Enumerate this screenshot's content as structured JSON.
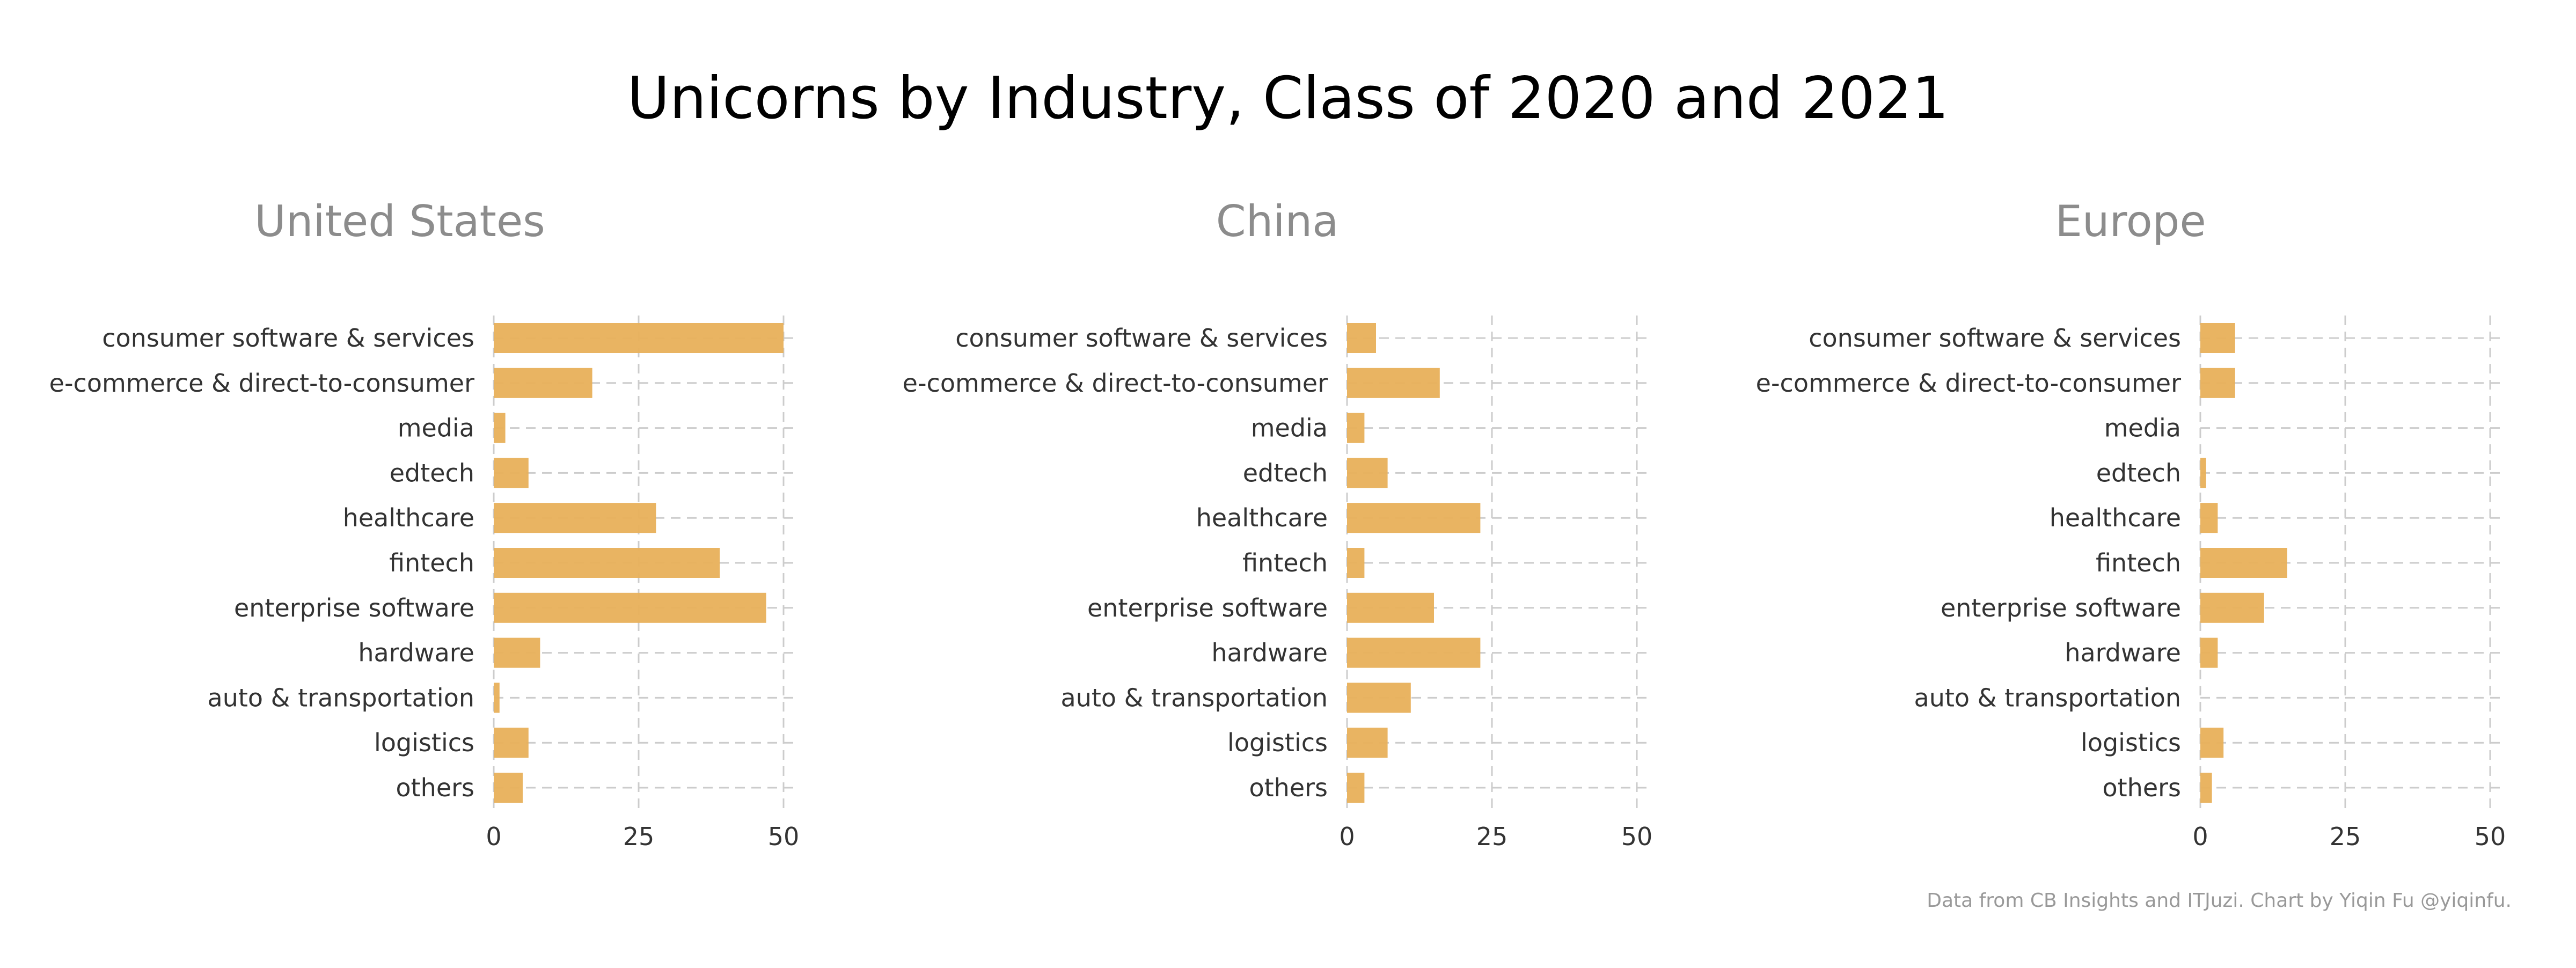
{
  "figure": {
    "title": "Unicorns by Industry, Class of 2020 and 2021",
    "caption": "Data from CB Insights and ITJuzi. Chart by Yiqin Fu @yiqinfu.",
    "bar_color": "#E8B05A",
    "grid_color": "#CCCCCC",
    "title_color": "#000000",
    "panel_title_color": "#8C8C8C",
    "label_color": "#333333",
    "caption_color": "#999999"
  },
  "chart_data": [
    {
      "type": "bar",
      "orientation": "horizontal",
      "title": "United States",
      "categories": [
        "consumer software & services",
        "e-commerce & direct-to-consumer",
        "media",
        "edtech",
        "healthcare",
        "fintech",
        "enterprise software",
        "hardware",
        "auto & transportation",
        "logistics",
        "others"
      ],
      "values": [
        50,
        17,
        2,
        6,
        28,
        39,
        47,
        8,
        1,
        6,
        5
      ],
      "xlim": [
        0,
        50
      ],
      "xticks": [
        0,
        25,
        50
      ],
      "grid": true
    },
    {
      "type": "bar",
      "orientation": "horizontal",
      "title": "China",
      "categories": [
        "consumer software & services",
        "e-commerce & direct-to-consumer",
        "media",
        "edtech",
        "healthcare",
        "fintech",
        "enterprise software",
        "hardware",
        "auto & transportation",
        "logistics",
        "others"
      ],
      "values": [
        5,
        16,
        3,
        7,
        23,
        3,
        15,
        23,
        11,
        7,
        3
      ],
      "xlim": [
        0,
        50
      ],
      "xticks": [
        0,
        25,
        50
      ],
      "grid": true
    },
    {
      "type": "bar",
      "orientation": "horizontal",
      "title": "Europe",
      "categories": [
        "consumer software & services",
        "e-commerce & direct-to-consumer",
        "media",
        "edtech",
        "healthcare",
        "fintech",
        "enterprise software",
        "hardware",
        "auto & transportation",
        "logistics",
        "others"
      ],
      "values": [
        6,
        6,
        0,
        1,
        3,
        15,
        11,
        3,
        0,
        4,
        2
      ],
      "xlim": [
        0,
        50
      ],
      "xticks": [
        0,
        25,
        50
      ],
      "grid": true
    }
  ]
}
